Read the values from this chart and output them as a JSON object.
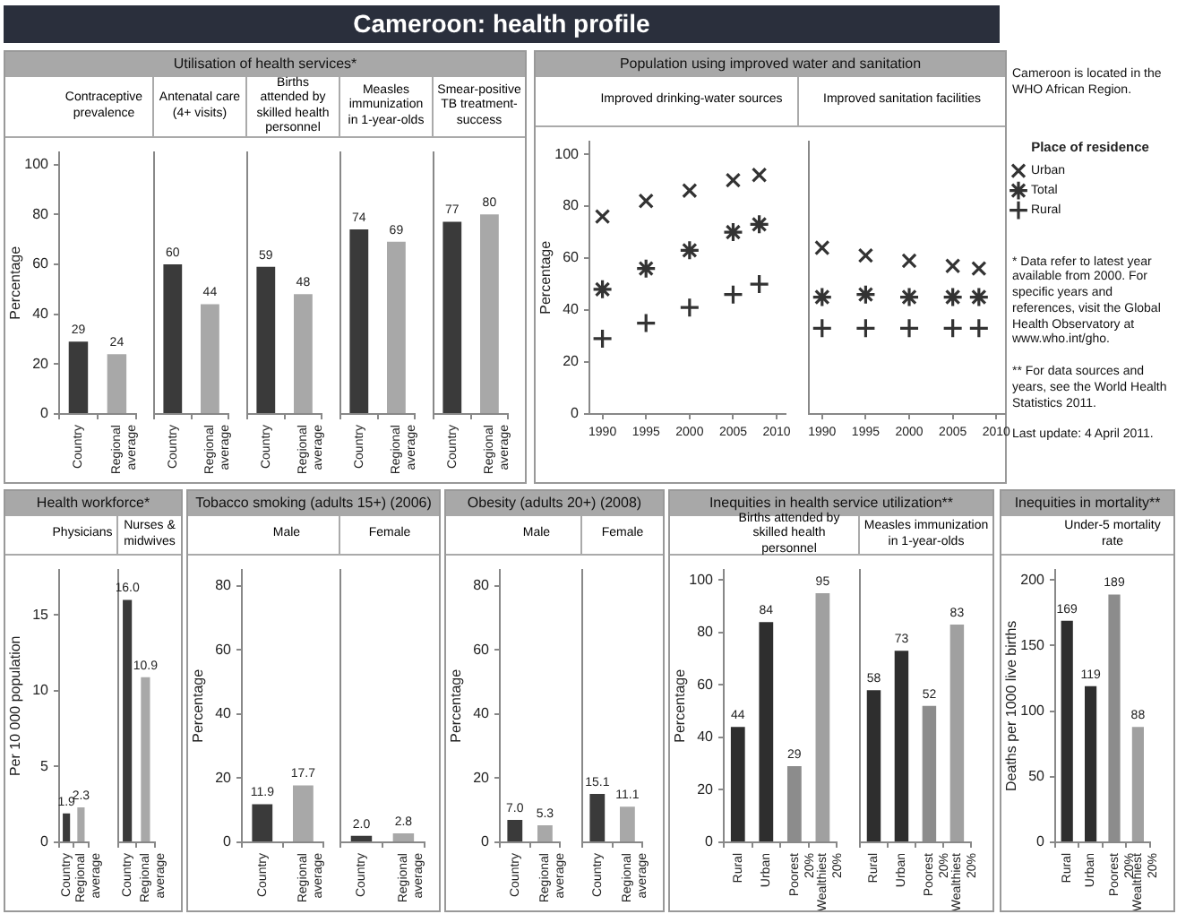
{
  "chart_data": [
    {
      "type": "other",
      "title": "Cameroon: health profile",
      "annotations": [
        "Cameroon is located in the WHO African Region.",
        "* Data refer to latest year available from 2000. For specific years and references, visit the Global Health Observatory at www.who.int/gho.",
        "** For data sources and years, see the World Health Statistics 2011.",
        "Last update: 4 April 2011."
      ]
    },
    {
      "type": "other",
      "title": "Utilisation of health services*"
    },
    {
      "type": "bar",
      "subtitle": "Contraceptive prevalence",
      "ylabel": "Percentage",
      "categories": [
        "Country",
        "Regional average"
      ],
      "values": [
        29,
        24
      ],
      "colors": [
        "#3a3a3a",
        "#a8a8a8"
      ],
      "ylim": [
        0,
        105
      ],
      "yticks": [
        0,
        20,
        40,
        60,
        80,
        100
      ],
      "data_labels": true
    },
    {
      "type": "bar",
      "subtitle": "Antenatal care (4+ visits)",
      "categories": [
        "Country",
        "Regional average"
      ],
      "values": [
        60,
        44
      ],
      "colors": [
        "#3a3a3a",
        "#a8a8a8"
      ],
      "ylim": [
        0,
        105
      ],
      "data_labels": true,
      "tick_labels": "x"
    },
    {
      "type": "bar",
      "subtitle": "Births attended by skilled health personnel",
      "categories": [
        "Country",
        "Regional average"
      ],
      "values": [
        59,
        48
      ],
      "colors": [
        "#3a3a3a",
        "#a8a8a8"
      ],
      "ylim": [
        0,
        105
      ],
      "data_labels": true,
      "tick_labels": "x"
    },
    {
      "type": "bar",
      "subtitle": "Measles immunization in 1-year-olds",
      "categories": [
        "Country",
        "Regional average"
      ],
      "values": [
        74,
        69
      ],
      "colors": [
        "#3a3a3a",
        "#a8a8a8"
      ],
      "ylim": [
        0,
        105
      ],
      "data_labels": true,
      "tick_labels": "x"
    },
    {
      "type": "bar",
      "subtitle": "Smear-positive TB treatment-success",
      "categories": [
        "Country",
        "Regional average"
      ],
      "values": [
        77,
        80
      ],
      "colors": [
        "#3a3a3a",
        "#a8a8a8"
      ],
      "ylim": [
        0,
        105
      ],
      "data_labels": true,
      "tick_labels": "x"
    },
    {
      "type": "other",
      "title": "Population using improved water and sanitation"
    },
    {
      "type": "scatter",
      "subtitle": "Improved drinking-water sources",
      "ylabel": "Percentage",
      "x": [
        1990,
        1995,
        2000,
        2005,
        2008
      ],
      "xlim": [
        1988.5,
        2011
      ],
      "xticks": [
        1990,
        1995,
        2000,
        2005,
        2010
      ],
      "ylim": [
        0,
        105
      ],
      "yticks": [
        0,
        20,
        40,
        60,
        80,
        100
      ],
      "series": [
        {
          "color": "#333333",
          "marker": "cross",
          "values": [
            76,
            82,
            86,
            90,
            92
          ]
        },
        {
          "color": "#333333",
          "values": [
            48,
            56,
            63,
            70,
            73
          ]
        },
        {
          "color": "#333333",
          "marker": "plus",
          "values": [
            29,
            35,
            41,
            46,
            50
          ]
        }
      ]
    },
    {
      "type": "scatter",
      "subtitle": "Improved sanitation facilities",
      "legend": "right",
      "legend_title": "Place of residence",
      "x": [
        1990,
        1995,
        2000,
        2005,
        2008
      ],
      "xlim": [
        1988.5,
        2011
      ],
      "xticks": [
        1990,
        1995,
        2000,
        2005,
        2010
      ],
      "ylim": [
        0,
        105
      ],
      "tick_labels": "x",
      "series": [
        {
          "name": "Urban",
          "color": "#333333",
          "marker": "cross",
          "values": [
            64,
            61,
            59,
            57,
            56
          ]
        },
        {
          "name": "Total",
          "color": "#333333",
          "values": [
            45,
            46,
            45,
            45,
            45
          ]
        },
        {
          "name": "Rural",
          "color": "#333333",
          "marker": "plus",
          "values": [
            33,
            33,
            33,
            33,
            33
          ]
        }
      ]
    },
    {
      "type": "other",
      "title": "Health workforce*"
    },
    {
      "type": "bar",
      "subtitle": "Physicians",
      "ylabel": "Per 10 000 population",
      "categories": [
        "Country",
        "Regional average"
      ],
      "values": [
        1.9,
        2.3
      ],
      "value_labels": [
        "1.9",
        "2.3"
      ],
      "colors": [
        "#3a3a3a",
        "#a8a8a8"
      ],
      "ylim": [
        0,
        18
      ],
      "yticks": [
        0,
        5,
        10,
        15
      ]
    },
    {
      "type": "bar",
      "subtitle": "Nurses & midwives",
      "categories": [
        "Country",
        "Regional average"
      ],
      "values": [
        16.0,
        10.9
      ],
      "value_labels": [
        "16.0",
        "10.9"
      ],
      "colors": [
        "#3a3a3a",
        "#a8a8a8"
      ],
      "ylim": [
        0,
        18
      ],
      "tick_labels": "x"
    },
    {
      "type": "other",
      "title": "Tobacco smoking (adults 15+) (2006)"
    },
    {
      "type": "bar",
      "subtitle": "Male",
      "ylabel": "Percentage",
      "categories": [
        "Country",
        "Regional average"
      ],
      "values": [
        11.9,
        17.7
      ],
      "value_labels": [
        "11.9",
        "17.7"
      ],
      "colors": [
        "#3a3a3a",
        "#a8a8a8"
      ],
      "ylim": [
        0,
        85
      ],
      "yticks": [
        0,
        20,
        40,
        60,
        80
      ]
    },
    {
      "type": "bar",
      "subtitle": "Female",
      "categories": [
        "Country",
        "Regional average"
      ],
      "values": [
        2.0,
        2.8
      ],
      "value_labels": [
        "2.0",
        "2.8"
      ],
      "colors": [
        "#3a3a3a",
        "#a8a8a8"
      ],
      "ylim": [
        0,
        85
      ],
      "tick_labels": "x"
    },
    {
      "type": "other",
      "title": "Obesity (adults 20+) (2008)"
    },
    {
      "type": "bar",
      "subtitle": "Male",
      "ylabel": "Percentage",
      "categories": [
        "Country",
        "Regional average"
      ],
      "values": [
        7.0,
        5.3
      ],
      "value_labels": [
        "7.0",
        "5.3"
      ],
      "colors": [
        "#3a3a3a",
        "#a8a8a8"
      ],
      "ylim": [
        0,
        85
      ],
      "yticks": [
        0,
        20,
        40,
        60,
        80
      ]
    },
    {
      "type": "bar",
      "subtitle": "Female",
      "categories": [
        "Country",
        "Regional average"
      ],
      "values": [
        15.1,
        11.1
      ],
      "value_labels": [
        "15.1",
        "11.1"
      ],
      "colors": [
        "#3a3a3a",
        "#a8a8a8"
      ],
      "ylim": [
        0,
        85
      ],
      "tick_labels": "x"
    },
    {
      "type": "other",
      "title": "Inequities in health service utilization**"
    },
    {
      "type": "bar",
      "subtitle": "Births attended by skilled health personnel",
      "ylabel": "Percentage",
      "categories": [
        "Rural",
        "Urban",
        "Poorest 20%",
        "Wealthiest 20%"
      ],
      "values": [
        44,
        84,
        29,
        95
      ],
      "colors": [
        "#2e2e2e",
        "#2e2e2e",
        "#8c8c8c",
        "#a0a0a0"
      ],
      "ylim": [
        0,
        104
      ],
      "yticks": [
        0,
        20,
        40,
        60,
        80,
        100
      ],
      "data_labels": true
    },
    {
      "type": "bar",
      "subtitle": "Measles immunization in 1-year-olds",
      "categories": [
        "Rural",
        "Urban",
        "Poorest 20%",
        "Wealthiest 20%"
      ],
      "values": [
        58,
        73,
        52,
        83
      ],
      "colors": [
        "#2e2e2e",
        "#2e2e2e",
        "#8c8c8c",
        "#a0a0a0"
      ],
      "ylim": [
        0,
        104
      ],
      "data_labels": true,
      "tick_labels": "x"
    },
    {
      "type": "other",
      "title": "Inequities in mortality**"
    },
    {
      "type": "bar",
      "subtitle": "Under-5 mortality rate",
      "ylabel": "Deaths per 1000 live births",
      "categories": [
        "Rural",
        "Urban",
        "Poorest 20%",
        "Wealthiest 20%"
      ],
      "values": [
        169,
        119,
        189,
        88
      ],
      "colors": [
        "#2e2e2e",
        "#2e2e2e",
        "#8c8c8c",
        "#a0a0a0"
      ],
      "ylim": [
        0,
        208
      ],
      "yticks": [
        0,
        50,
        100,
        150,
        200
      ],
      "data_labels": true
    }
  ]
}
